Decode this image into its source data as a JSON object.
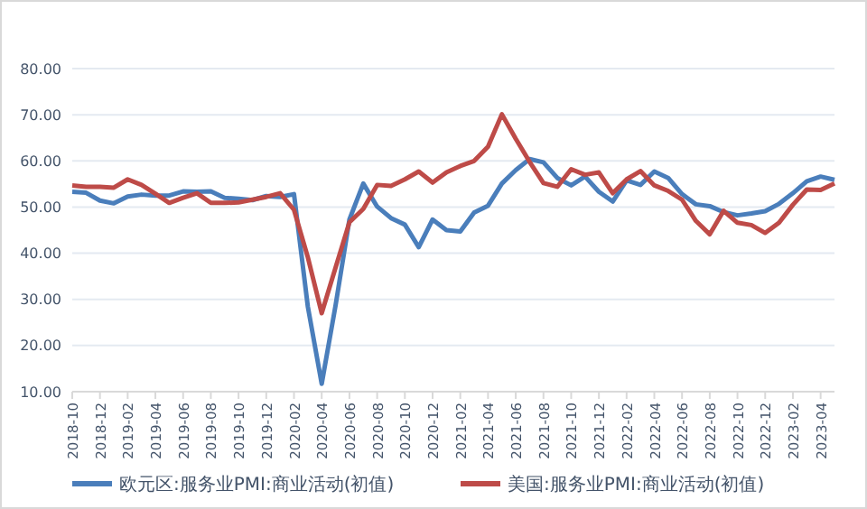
{
  "chart_data": {
    "type": "line",
    "categories": [
      "2018-10",
      null,
      "2018-12",
      null,
      "2019-02",
      null,
      "2019-04",
      null,
      "2019-06",
      null,
      "2019-08",
      null,
      "2019-10",
      null,
      "2019-12",
      null,
      "2020-02",
      null,
      "2020-04",
      null,
      "2020-06",
      null,
      "2020-08",
      null,
      "2020-10",
      null,
      "2020-12",
      null,
      "2021-02",
      null,
      "2021-04",
      null,
      "2021-06",
      null,
      "2021-08",
      null,
      "2021-10",
      null,
      "2021-12",
      null,
      "2022-02",
      null,
      "2022-04",
      null,
      "2022-06",
      null,
      "2022-08",
      null,
      "2022-10",
      null,
      "2022-12",
      null,
      "2023-02",
      null,
      "2023-04",
      null
    ],
    "series": [
      {
        "name": "欧元区:服务业PMI:商业活动(初值)",
        "color": "#4a7ebb",
        "values": [
          53.3,
          53.1,
          51.4,
          50.8,
          52.3,
          52.7,
          52.5,
          52.5,
          53.4,
          53.3,
          53.4,
          52.0,
          51.8,
          51.5,
          52.4,
          52.2,
          52.8,
          28.4,
          11.7,
          28.7,
          47.3,
          55.1,
          50.1,
          47.6,
          46.2,
          41.3,
          47.3,
          45.0,
          44.7,
          48.8,
          50.3,
          55.1,
          58.0,
          60.4,
          59.7,
          56.3,
          54.7,
          56.6,
          53.3,
          51.2,
          55.8,
          54.8,
          57.7,
          56.3,
          52.8,
          50.6,
          50.2,
          48.9,
          48.2,
          48.6,
          49.1,
          50.7,
          53.0,
          55.6,
          56.6,
          55.9
        ]
      },
      {
        "name": "美国:服务业PMI:商业活动(初值)",
        "color": "#be4b48",
        "values": [
          54.7,
          54.4,
          54.4,
          54.2,
          56.0,
          54.8,
          52.9,
          50.9,
          52.0,
          53.0,
          50.9,
          50.9,
          51.0,
          51.6,
          52.2,
          53.0,
          49.4,
          39.1,
          27.0,
          36.9,
          46.7,
          49.6,
          54.8,
          54.6,
          56.0,
          57.7,
          55.3,
          57.5,
          58.9,
          60.0,
          63.1,
          70.1,
          64.8,
          59.8,
          55.2,
          54.4,
          58.2,
          57.0,
          57.5,
          53.0,
          56.0,
          57.8,
          54.7,
          53.5,
          51.6,
          47.0,
          44.1,
          49.2,
          46.6,
          46.1,
          44.4,
          46.6,
          50.5,
          53.8,
          53.7,
          55.1
        ]
      }
    ],
    "ylim": [
      10,
      80
    ],
    "yticks": [
      {
        "value": 10,
        "label": "10.00"
      },
      {
        "value": 20,
        "label": "20.00"
      },
      {
        "value": 30,
        "label": "30.00"
      },
      {
        "value": 40,
        "label": "40.00"
      },
      {
        "value": 50,
        "label": "50.00"
      },
      {
        "value": 60,
        "label": "60.00"
      },
      {
        "value": 70,
        "label": "70.00"
      },
      {
        "value": 80,
        "label": "80.00"
      }
    ],
    "grid": "y",
    "legend": "bottom",
    "line_style": "solid",
    "marker": "none"
  }
}
